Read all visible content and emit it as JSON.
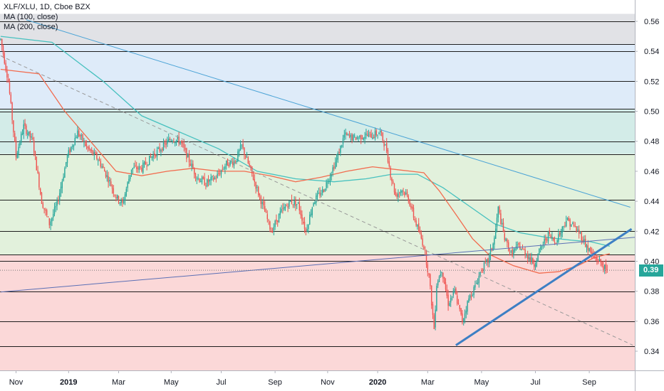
{
  "chart_data": {
    "type": "candlestick",
    "symbol_line": "XLF/XLU, 1D, Cboe BZX",
    "indicators": [
      "MA (100, close)",
      "MA (200, close)"
    ],
    "y_ticks": [
      "0.56",
      "0.54",
      "0.52",
      "0.50",
      "0.48",
      "0.46",
      "0.44",
      "0.42",
      "0.40",
      "0.38",
      "0.36",
      "0.34"
    ],
    "y_tick_values": [
      0.56,
      0.54,
      0.52,
      0.5,
      0.48,
      0.46,
      0.44,
      0.42,
      0.4,
      0.38,
      0.36,
      0.34
    ],
    "ylim": [
      0.325,
      0.565
    ],
    "x_ticks": [
      {
        "label": "Nov",
        "bold": false,
        "i": 12
      },
      {
        "label": "2019",
        "bold": true,
        "i": 53
      },
      {
        "label": "Mar",
        "bold": false,
        "i": 92
      },
      {
        "label": "May",
        "bold": false,
        "i": 133
      },
      {
        "label": "Jul",
        "bold": false,
        "i": 172
      },
      {
        "label": "Sep",
        "bold": false,
        "i": 214
      },
      {
        "label": "Nov",
        "bold": false,
        "i": 255
      },
      {
        "label": "2020",
        "bold": true,
        "i": 294
      },
      {
        "label": "Mar",
        "bold": false,
        "i": 333
      },
      {
        "label": "May",
        "bold": false,
        "i": 375
      },
      {
        "label": "Jul",
        "bold": false,
        "i": 417
      },
      {
        "label": "Sep",
        "bold": false,
        "i": 459
      }
    ],
    "bar_count": 495,
    "last_price_label": "0.39",
    "last_price_value": 0.394,
    "horizontal_levels": [
      0.56,
      0.545,
      0.54,
      0.52,
      0.5015,
      0.5,
      0.48,
      0.4715,
      0.441,
      0.42,
      0.4045,
      0.4,
      0.38,
      0.36,
      0.3435
    ],
    "zones": [
      {
        "from": 0.545,
        "to": 0.565,
        "color": "#e1e2e6"
      },
      {
        "from": 0.5015,
        "to": 0.545,
        "color": "#deebf9"
      },
      {
        "from": 0.4715,
        "to": 0.5015,
        "color": "#d3ece8"
      },
      {
        "from": 0.4045,
        "to": 0.4715,
        "color": "#e2f1dc"
      },
      {
        "from": 0.325,
        "to": 0.4045,
        "color": "#fbd8d8"
      }
    ],
    "trendlines": [
      {
        "name": "upper-trendline",
        "i1": 20,
        "y1": 0.561,
        "i2": 491,
        "y2": 0.436,
        "color": "#4aa3d6",
        "width": 1
      },
      {
        "name": "dashed-trendline",
        "i1": 0,
        "y1": 0.537,
        "i2": 493,
        "y2": 0.344,
        "color": "#9a9a9a",
        "width": 1,
        "dash": "5,4"
      },
      {
        "name": "long-rising-line",
        "i1": 0,
        "y1": 0.3795,
        "i2": 495,
        "y2": 0.416,
        "color": "#5b6fb5",
        "width": 1
      },
      {
        "name": "support-trendline",
        "i1": 355,
        "y1": 0.344,
        "i2": 492,
        "y2": 0.4215,
        "color": "#3d7fc4",
        "width": 3
      }
    ],
    "anchors": [
      [
        0,
        0.548
      ],
      [
        6,
        0.52
      ],
      [
        12,
        0.47
      ],
      [
        18,
        0.49
      ],
      [
        25,
        0.48
      ],
      [
        32,
        0.44
      ],
      [
        38,
        0.425
      ],
      [
        44,
        0.438
      ],
      [
        52,
        0.47
      ],
      [
        60,
        0.486
      ],
      [
        68,
        0.475
      ],
      [
        76,
        0.468
      ],
      [
        84,
        0.455
      ],
      [
        90,
        0.443
      ],
      [
        95,
        0.438
      ],
      [
        102,
        0.462
      ],
      [
        110,
        0.462
      ],
      [
        118,
        0.47
      ],
      [
        126,
        0.476
      ],
      [
        133,
        0.482
      ],
      [
        140,
        0.48
      ],
      [
        147,
        0.467
      ],
      [
        153,
        0.456
      ],
      [
        160,
        0.452
      ],
      [
        168,
        0.456
      ],
      [
        176,
        0.465
      ],
      [
        183,
        0.467
      ],
      [
        188,
        0.477
      ],
      [
        196,
        0.458
      ],
      [
        204,
        0.438
      ],
      [
        211,
        0.42
      ],
      [
        218,
        0.432
      ],
      [
        226,
        0.44
      ],
      [
        232,
        0.438
      ],
      [
        238,
        0.42
      ],
      [
        244,
        0.44
      ],
      [
        252,
        0.448
      ],
      [
        258,
        0.46
      ],
      [
        262,
        0.468
      ],
      [
        268,
        0.484
      ],
      [
        276,
        0.482
      ],
      [
        284,
        0.484
      ],
      [
        290,
        0.484
      ],
      [
        296,
        0.486
      ],
      [
        301,
        0.474
      ],
      [
        304,
        0.458
      ],
      [
        308,
        0.444
      ],
      [
        313,
        0.448
      ],
      [
        318,
        0.442
      ],
      [
        322,
        0.43
      ],
      [
        326,
        0.42
      ],
      [
        330,
        0.41
      ],
      [
        334,
        0.39
      ],
      [
        338,
        0.355
      ],
      [
        340,
        0.385
      ],
      [
        344,
        0.395
      ],
      [
        349,
        0.372
      ],
      [
        354,
        0.38
      ],
      [
        360,
        0.36
      ],
      [
        365,
        0.375
      ],
      [
        370,
        0.383
      ],
      [
        375,
        0.395
      ],
      [
        380,
        0.4
      ],
      [
        385,
        0.415
      ],
      [
        388,
        0.435
      ],
      [
        393,
        0.415
      ],
      [
        398,
        0.405
      ],
      [
        404,
        0.41
      ],
      [
        410,
        0.405
      ],
      [
        416,
        0.398
      ],
      [
        422,
        0.41
      ],
      [
        427,
        0.418
      ],
      [
        432,
        0.413
      ],
      [
        437,
        0.42
      ],
      [
        441,
        0.428
      ],
      [
        446,
        0.424
      ],
      [
        452,
        0.418
      ],
      [
        457,
        0.41
      ],
      [
        462,
        0.403
      ],
      [
        467,
        0.4
      ],
      [
        473,
        0.393
      ]
    ],
    "ma100": [
      [
        0,
        0.528
      ],
      [
        30,
        0.525
      ],
      [
        50,
        0.5
      ],
      [
        70,
        0.48
      ],
      [
        90,
        0.46
      ],
      [
        110,
        0.457
      ],
      [
        130,
        0.46
      ],
      [
        150,
        0.462
      ],
      [
        170,
        0.46
      ],
      [
        190,
        0.46
      ],
      [
        210,
        0.457
      ],
      [
        230,
        0.453
      ],
      [
        250,
        0.456
      ],
      [
        270,
        0.46
      ],
      [
        290,
        0.463
      ],
      [
        310,
        0.461
      ],
      [
        320,
        0.46
      ],
      [
        330,
        0.459
      ],
      [
        342,
        0.447
      ],
      [
        356,
        0.43
      ],
      [
        368,
        0.415
      ],
      [
        380,
        0.405
      ],
      [
        400,
        0.397
      ],
      [
        420,
        0.392
      ],
      [
        435,
        0.393
      ],
      [
        450,
        0.397
      ],
      [
        462,
        0.402
      ],
      [
        470,
        0.404
      ],
      [
        475,
        0.405
      ]
    ],
    "ma200": [
      [
        0,
        0.55
      ],
      [
        40,
        0.546
      ],
      [
        80,
        0.52
      ],
      [
        110,
        0.497
      ],
      [
        140,
        0.486
      ],
      [
        170,
        0.475
      ],
      [
        200,
        0.46
      ],
      [
        230,
        0.455
      ],
      [
        260,
        0.453
      ],
      [
        285,
        0.455
      ],
      [
        305,
        0.458
      ],
      [
        325,
        0.458
      ],
      [
        345,
        0.449
      ],
      [
        365,
        0.437
      ],
      [
        385,
        0.425
      ],
      [
        405,
        0.419
      ],
      [
        425,
        0.416
      ],
      [
        445,
        0.414
      ],
      [
        460,
        0.413
      ],
      [
        475,
        0.41
      ]
    ],
    "up_color": "#26a69a",
    "down_color": "#ef5350",
    "ma100_color": "#f26c4f",
    "ma200_color": "#47c1bf",
    "price_tag_color": "#26a69a"
  }
}
